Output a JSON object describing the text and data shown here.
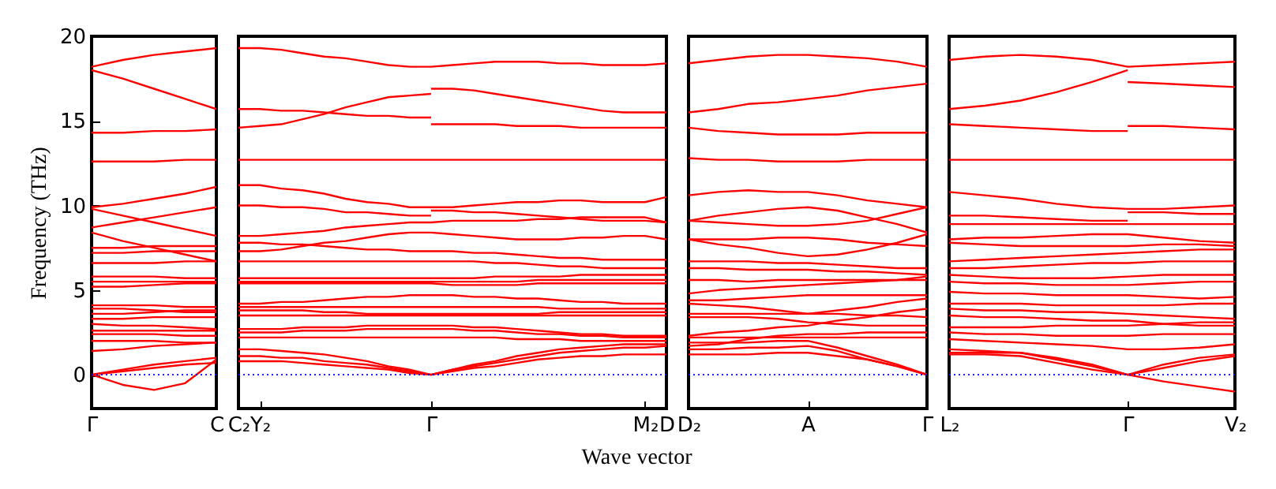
{
  "chart_data": [
    {
      "type": "line",
      "ylabel": "Frequency (THz)",
      "categories": [
        "Γ",
        null,
        null,
        null,
        "C"
      ],
      "ylim": [
        -2,
        20
      ],
      "yticks": [
        0,
        5,
        10,
        15,
        20
      ],
      "ref_lines": [
        {
          "axis": "y",
          "value": 0,
          "color": "#0000ff",
          "line_style": "dotted"
        }
      ],
      "series": [
        {
          "color": "#ff0000",
          "values": [
            18.2,
            18.6,
            18.9,
            19.1,
            19.3
          ]
        },
        {
          "color": "#ff0000",
          "values": [
            18.0,
            17.5,
            16.9,
            16.3,
            15.7
          ]
        },
        {
          "color": "#ff0000",
          "values": [
            14.3,
            14.3,
            14.4,
            14.4,
            14.5
          ]
        },
        {
          "color": "#ff0000",
          "values": [
            12.6,
            12.6,
            12.6,
            12.7,
            12.7
          ]
        },
        {
          "color": "#ff0000",
          "values": [
            9.9,
            10.1,
            10.4,
            10.7,
            11.1
          ]
        },
        {
          "color": "#ff0000",
          "values": [
            9.8,
            9.4,
            9.0,
            8.6,
            8.2
          ]
        },
        {
          "color": "#ff0000",
          "values": [
            8.7,
            9.0,
            9.3,
            9.6,
            9.9
          ]
        },
        {
          "color": "#ff0000",
          "values": [
            8.4,
            7.9,
            7.5,
            7.1,
            6.7
          ]
        },
        {
          "color": "#ff0000",
          "values": [
            7.5,
            7.5,
            7.6,
            7.6,
            7.6
          ]
        },
        {
          "color": "#ff0000",
          "values": [
            7.2,
            7.2,
            7.3,
            7.3,
            7.3
          ]
        },
        {
          "color": "#ff0000",
          "values": [
            6.6,
            6.6,
            6.6,
            6.7,
            6.7
          ]
        },
        {
          "color": "#ff0000",
          "values": [
            5.8,
            5.8,
            5.8,
            5.7,
            5.7
          ]
        },
        {
          "color": "#ff0000",
          "values": [
            5.5,
            5.5,
            5.5,
            5.5,
            5.5
          ]
        },
        {
          "color": "#ff0000",
          "values": [
            5.2,
            5.2,
            5.3,
            5.4,
            5.4
          ]
        },
        {
          "color": "#ff0000",
          "values": [
            4.1,
            4.1,
            4.1,
            4.0,
            4.0
          ]
        },
        {
          "color": "#ff0000",
          "values": [
            3.9,
            3.9,
            3.8,
            3.7,
            3.7
          ]
        },
        {
          "color": "#ff0000",
          "values": [
            3.6,
            3.6,
            3.7,
            3.8,
            3.8
          ]
        },
        {
          "color": "#ff0000",
          "values": [
            3.3,
            3.3,
            3.4,
            3.4,
            3.4
          ]
        },
        {
          "color": "#ff0000",
          "values": [
            3.0,
            2.9,
            2.9,
            2.8,
            2.7
          ]
        },
        {
          "color": "#ff0000",
          "values": [
            2.6,
            2.6,
            2.6,
            2.6,
            2.6
          ]
        },
        {
          "color": "#ff0000",
          "values": [
            2.4,
            2.4,
            2.4,
            2.3,
            2.3
          ]
        },
        {
          "color": "#ff0000",
          "values": [
            2.0,
            2.0,
            2.0,
            1.9,
            1.9
          ]
        },
        {
          "color": "#ff0000",
          "values": [
            1.4,
            1.5,
            1.7,
            1.8,
            1.9
          ]
        },
        {
          "color": "#ff0000",
          "values": [
            0,
            0.3,
            0.6,
            0.8,
            1.0
          ]
        },
        {
          "color": "#ff0000",
          "values": [
            0,
            0.2,
            0.4,
            0.6,
            0.7
          ]
        },
        {
          "color": "#ff0000",
          "values": [
            0,
            -0.6,
            -0.9,
            -0.5,
            0.9
          ]
        }
      ]
    },
    {
      "type": "line",
      "annotations": [
        "Wave vector"
      ],
      "categories": [
        "C₂",
        "Y₂",
        null,
        null,
        null,
        null,
        null,
        null,
        null,
        "Γ",
        null,
        null,
        null,
        null,
        null,
        null,
        null,
        null,
        null,
        "M₂",
        "D"
      ],
      "ylim": [
        -2,
        20
      ],
      "tick_labels": "x",
      "ref_lines": [
        {
          "axis": "y",
          "value": 0,
          "color": "#0000ff",
          "line_style": "dotted"
        }
      ],
      "series": [
        {
          "color": "#ff0000",
          "values": [
            19.3,
            19.3,
            19.2,
            19.0,
            18.8,
            18.7,
            18.5,
            18.3,
            18.2,
            18.2,
            18.3,
            18.4,
            18.5,
            18.5,
            18.5,
            18.4,
            18.4,
            18.3,
            18.3,
            18.3,
            18.4
          ]
        },
        {
          "color": "#ff0000",
          "values": [
            14.6,
            14.7,
            14.8,
            15.1,
            15.4,
            15.8,
            16.1,
            16.4,
            16.5,
            16.6,
            null,
            null,
            null,
            null,
            null,
            null,
            null,
            null,
            null,
            null,
            null
          ]
        },
        {
          "color": "#ff0000",
          "values": [
            null,
            null,
            null,
            null,
            null,
            null,
            null,
            null,
            null,
            16.9,
            16.9,
            16.8,
            16.6,
            16.4,
            16.2,
            16.0,
            15.8,
            15.6,
            15.5,
            15.5,
            15.5
          ]
        },
        {
          "color": "#ff0000",
          "values": [
            15.7,
            15.7,
            15.6,
            15.6,
            15.5,
            15.4,
            15.3,
            15.3,
            15.2,
            15.2,
            null,
            null,
            null,
            null,
            null,
            null,
            null,
            null,
            null,
            null,
            null
          ]
        },
        {
          "color": "#ff0000",
          "values": [
            null,
            null,
            null,
            null,
            null,
            null,
            null,
            null,
            null,
            14.8,
            14.8,
            14.8,
            14.8,
            14.7,
            14.7,
            14.7,
            14.6,
            14.6,
            14.6,
            14.6,
            14.6
          ]
        },
        {
          "color": "#ff0000",
          "values": [
            12.7,
            12.7,
            12.7,
            12.7,
            12.7,
            12.7,
            12.7,
            12.7,
            12.7,
            12.7,
            12.7,
            12.7,
            12.7,
            12.7,
            12.7,
            12.7,
            12.7,
            12.7,
            12.7,
            12.7,
            12.7
          ]
        },
        {
          "color": "#ff0000",
          "values": [
            11.2,
            11.2,
            11.0,
            10.9,
            10.7,
            10.4,
            10.2,
            10.1,
            9.9,
            9.9,
            9.9,
            10.0,
            10.1,
            10.2,
            10.2,
            10.3,
            10.3,
            10.2,
            10.2,
            10.2,
            10.5
          ]
        },
        {
          "color": "#ff0000",
          "values": [
            10.0,
            10.0,
            9.9,
            9.9,
            9.8,
            9.6,
            9.6,
            9.5,
            9.4,
            9.4,
            null,
            null,
            null,
            null,
            null,
            null,
            null,
            null,
            null,
            null,
            null
          ]
        },
        {
          "color": "#ff0000",
          "values": [
            null,
            null,
            null,
            null,
            null,
            null,
            null,
            null,
            null,
            9.7,
            9.7,
            9.6,
            9.6,
            9.5,
            9.4,
            9.3,
            9.2,
            9.1,
            9.1,
            9.1,
            9.0
          ]
        },
        {
          "color": "#ff0000",
          "values": [
            8.2,
            8.2,
            8.3,
            8.4,
            8.5,
            8.7,
            8.8,
            8.9,
            9.0,
            9.0,
            9.1,
            9.1,
            9.1,
            9.1,
            9.2,
            9.2,
            9.3,
            9.3,
            9.3,
            9.3,
            9.0
          ]
        },
        {
          "color": "#ff0000",
          "values": [
            7.8,
            7.8,
            7.7,
            7.7,
            7.6,
            7.5,
            7.4,
            7.4,
            7.3,
            7.3,
            7.3,
            7.2,
            7.2,
            7.1,
            7.0,
            6.9,
            6.9,
            6.8,
            6.8,
            6.8,
            6.8
          ]
        },
        {
          "color": "#ff0000",
          "values": [
            7.3,
            7.3,
            7.4,
            7.6,
            7.8,
            7.9,
            8.1,
            8.3,
            8.4,
            8.4,
            8.3,
            8.2,
            8.1,
            8.0,
            8.0,
            8.0,
            8.1,
            8.1,
            8.2,
            8.2,
            8.0
          ]
        },
        {
          "color": "#ff0000",
          "values": [
            6.7,
            6.7,
            6.7,
            6.7,
            6.7,
            6.7,
            6.7,
            6.7,
            6.7,
            6.7,
            6.7,
            6.7,
            6.6,
            6.6,
            6.5,
            6.4,
            6.4,
            6.3,
            6.3,
            6.3,
            6.3
          ]
        },
        {
          "color": "#ff0000",
          "values": [
            5.7,
            5.7,
            5.7,
            5.7,
            5.7,
            5.7,
            5.7,
            5.7,
            5.7,
            5.7,
            5.7,
            5.7,
            5.8,
            5.8,
            5.8,
            5.8,
            5.9,
            5.9,
            5.9,
            5.9,
            5.9
          ]
        },
        {
          "color": "#ff0000",
          "values": [
            5.5,
            5.5,
            5.5,
            5.5,
            5.5,
            5.5,
            5.5,
            5.5,
            5.5,
            5.5,
            5.5,
            5.5,
            5.5,
            5.5,
            5.6,
            5.6,
            5.6,
            5.6,
            5.6,
            5.6,
            5.6
          ]
        },
        {
          "color": "#ff0000",
          "values": [
            5.4,
            5.4,
            5.4,
            5.4,
            5.4,
            5.4,
            5.4,
            5.4,
            5.4,
            5.4,
            5.3,
            5.3,
            5.3,
            5.3,
            5.4,
            5.4,
            5.4,
            5.4,
            5.4,
            5.4,
            5.4
          ]
        },
        {
          "color": "#ff0000",
          "values": [
            4.2,
            4.2,
            4.3,
            4.3,
            4.4,
            4.5,
            4.6,
            4.6,
            4.7,
            4.7,
            4.7,
            4.6,
            4.6,
            4.5,
            4.5,
            4.4,
            4.3,
            4.3,
            4.2,
            4.2,
            4.2
          ]
        },
        {
          "color": "#ff0000",
          "values": [
            4.0,
            4.0,
            4.0,
            4.0,
            4.0,
            4.0,
            4.0,
            4.0,
            4.0,
            4.0,
            4.0,
            4.0,
            4.0,
            4.0,
            4.0,
            3.9,
            3.9,
            3.9,
            3.9,
            3.9,
            3.9
          ]
        },
        {
          "color": "#ff0000",
          "values": [
            3.8,
            3.8,
            3.8,
            3.8,
            3.7,
            3.7,
            3.6,
            3.6,
            3.6,
            3.6,
            3.6,
            3.6,
            3.6,
            3.6,
            3.6,
            3.7,
            3.7,
            3.7,
            3.7,
            3.7,
            3.7
          ]
        },
        {
          "color": "#ff0000",
          "values": [
            3.5,
            3.5,
            3.5,
            3.5,
            3.5,
            3.5,
            3.5,
            3.5,
            3.5,
            3.5,
            3.5,
            3.5,
            3.5,
            3.5,
            3.5,
            3.5,
            3.5,
            3.5,
            3.5,
            3.5,
            3.5
          ]
        },
        {
          "color": "#ff0000",
          "values": [
            2.7,
            2.7,
            2.7,
            2.8,
            2.8,
            2.8,
            2.9,
            2.9,
            2.9,
            2.9,
            2.9,
            2.8,
            2.8,
            2.7,
            2.6,
            2.5,
            2.4,
            2.4,
            2.3,
            2.3,
            2.3
          ]
        },
        {
          "color": "#ff0000",
          "values": [
            2.5,
            2.5,
            2.5,
            2.6,
            2.6,
            2.6,
            2.7,
            2.7,
            2.7,
            2.7,
            2.7,
            2.6,
            2.6,
            2.5,
            2.4,
            2.4,
            2.3,
            2.3,
            2.2,
            2.2,
            2.2
          ]
        },
        {
          "color": "#ff0000",
          "values": [
            2.2,
            2.2,
            2.2,
            2.2,
            2.2,
            2.2,
            2.2,
            2.2,
            2.2,
            2.2,
            2.2,
            2.2,
            2.2,
            2.1,
            2.1,
            2.1,
            2.0,
            2.0,
            2.0,
            2.0,
            2.0
          ]
        },
        {
          "color": "#ff0000",
          "values": [
            1.5,
            1.5,
            1.4,
            1.3,
            1.2,
            1.0,
            0.8,
            0.5,
            0.3,
            0,
            0.3,
            0.6,
            0.8,
            1.1,
            1.3,
            1.5,
            1.6,
            1.7,
            1.8,
            1.8,
            1.8
          ]
        },
        {
          "color": "#ff0000",
          "values": [
            1.1,
            1.1,
            1.0,
            1.0,
            0.8,
            0.7,
            0.6,
            0.4,
            0.2,
            0,
            0.3,
            0.5,
            0.7,
            0.9,
            1.1,
            1.3,
            1.4,
            1.5,
            1.6,
            1.6,
            1.7
          ]
        },
        {
          "color": "#ff0000",
          "values": [
            0.8,
            0.8,
            0.8,
            0.7,
            0.6,
            0.5,
            0.4,
            0.3,
            0.1,
            0,
            0.2,
            0.4,
            0.5,
            0.7,
            0.9,
            1.0,
            1.1,
            1.1,
            1.2,
            1.2,
            1.2
          ]
        }
      ]
    },
    {
      "type": "line",
      "categories": [
        "D₂",
        null,
        null,
        null,
        "A",
        null,
        null,
        null,
        "Γ"
      ],
      "ylim": [
        -2,
        20
      ],
      "tick_labels": "x",
      "ref_lines": [
        {
          "axis": "y",
          "value": 0,
          "color": "#0000ff",
          "line_style": "dotted"
        }
      ],
      "series": [
        {
          "color": "#ff0000",
          "values": [
            18.4,
            18.6,
            18.8,
            18.9,
            18.9,
            18.8,
            18.7,
            18.5,
            18.2
          ]
        },
        {
          "color": "#ff0000",
          "values": [
            15.5,
            15.7,
            16.0,
            16.1,
            16.3,
            16.5,
            16.8,
            17.0,
            17.2
          ]
        },
        {
          "color": "#ff0000",
          "values": [
            14.6,
            14.4,
            14.3,
            14.2,
            14.2,
            14.2,
            14.3,
            14.3,
            14.3
          ]
        },
        {
          "color": "#ff0000",
          "values": [
            12.8,
            12.7,
            12.7,
            12.6,
            12.6,
            12.6,
            12.7,
            12.7,
            12.7
          ]
        },
        {
          "color": "#ff0000",
          "values": [
            10.6,
            10.8,
            10.9,
            10.8,
            10.8,
            10.6,
            10.3,
            10.1,
            9.9
          ]
        },
        {
          "color": "#ff0000",
          "values": [
            9.1,
            9.4,
            9.6,
            9.8,
            9.9,
            9.7,
            9.3,
            8.9,
            8.4
          ]
        },
        {
          "color": "#ff0000",
          "values": [
            9.1,
            9.0,
            8.9,
            8.8,
            8.8,
            8.9,
            9.1,
            9.5,
            9.9
          ]
        },
        {
          "color": "#ff0000",
          "values": [
            8.0,
            7.7,
            7.5,
            7.2,
            7.0,
            7.1,
            7.4,
            7.8,
            8.3
          ]
        },
        {
          "color": "#ff0000",
          "values": [
            8.0,
            8.0,
            8.0,
            8.1,
            8.1,
            8.0,
            7.8,
            7.7,
            7.6
          ]
        },
        {
          "color": "#ff0000",
          "values": [
            6.7,
            6.7,
            6.7,
            6.6,
            6.6,
            6.5,
            6.4,
            6.3,
            6.3
          ]
        },
        {
          "color": "#ff0000",
          "values": [
            6.3,
            6.3,
            6.2,
            6.2,
            6.2,
            6.1,
            6.1,
            6.0,
            5.9
          ]
        },
        {
          "color": "#ff0000",
          "values": [
            5.6,
            5.6,
            5.5,
            5.6,
            5.6,
            5.6,
            5.6,
            5.6,
            5.6
          ]
        },
        {
          "color": "#ff0000",
          "values": [
            4.8,
            5.0,
            5.1,
            5.2,
            5.3,
            5.4,
            5.5,
            5.6,
            5.8
          ]
        },
        {
          "color": "#ff0000",
          "values": [
            4.4,
            4.4,
            4.5,
            4.6,
            4.7,
            4.7,
            4.7,
            4.7,
            4.7
          ]
        },
        {
          "color": "#ff0000",
          "values": [
            4.2,
            4.1,
            4.0,
            3.8,
            3.6,
            3.8,
            4.0,
            4.3,
            4.5
          ]
        },
        {
          "color": "#ff0000",
          "values": [
            3.6,
            3.6,
            3.6,
            3.6,
            3.6,
            3.6,
            3.5,
            3.5,
            3.4
          ]
        },
        {
          "color": "#ff0000",
          "values": [
            3.4,
            3.4,
            3.4,
            3.3,
            3.1,
            3.0,
            2.9,
            2.9,
            2.9
          ]
        },
        {
          "color": "#ff0000",
          "values": [
            2.3,
            2.5,
            2.6,
            2.8,
            2.9,
            3.2,
            3.4,
            3.7,
            3.9
          ]
        },
        {
          "color": "#ff0000",
          "values": [
            1.7,
            1.8,
            2.1,
            2.3,
            2.4,
            2.4,
            2.5,
            2.5,
            2.5
          ]
        },
        {
          "color": "#ff0000",
          "values": [
            2.2,
            2.2,
            2.2,
            2.2,
            2.2,
            2.2,
            2.2,
            2.2,
            2.2
          ]
        },
        {
          "color": "#ff0000",
          "values": [
            1.2,
            1.2,
            1.2,
            1.3,
            1.3,
            1.1,
            0.9,
            0.5,
            0
          ]
        },
        {
          "color": "#ff0000",
          "values": [
            1.9,
            1.9,
            1.9,
            2.0,
            2.0,
            1.6,
            1.1,
            0.6,
            0
          ]
        },
        {
          "color": "#ff0000",
          "values": [
            1.5,
            1.5,
            1.6,
            1.6,
            1.7,
            1.4,
            0.9,
            0.5,
            0
          ]
        }
      ]
    },
    {
      "type": "line",
      "categories": [
        "L₂",
        null,
        null,
        null,
        null,
        "Γ",
        null,
        null,
        "V₂"
      ],
      "ylim": [
        -2,
        20
      ],
      "tick_labels": "x",
      "ref_lines": [
        {
          "axis": "y",
          "value": 0,
          "color": "#0000ff",
          "line_style": "dotted"
        }
      ],
      "series": [
        {
          "color": "#ff0000",
          "values": [
            18.6,
            18.8,
            18.9,
            18.8,
            18.6,
            18.2,
            18.3,
            18.4,
            18.5
          ]
        },
        {
          "color": "#ff0000",
          "values": [
            15.7,
            15.9,
            16.2,
            16.7,
            17.3,
            18.0,
            null,
            null,
            null
          ]
        },
        {
          "color": "#ff0000",
          "values": [
            null,
            null,
            null,
            null,
            null,
            17.3,
            17.2,
            17.1,
            17.0
          ]
        },
        {
          "color": "#ff0000",
          "values": [
            14.8,
            14.7,
            14.6,
            14.5,
            14.4,
            14.4,
            null,
            null,
            null
          ]
        },
        {
          "color": "#ff0000",
          "values": [
            null,
            null,
            null,
            null,
            null,
            14.7,
            14.7,
            14.6,
            14.5
          ]
        },
        {
          "color": "#ff0000",
          "values": [
            12.7,
            12.7,
            12.7,
            12.7,
            12.7,
            12.7,
            12.7,
            12.7,
            12.7
          ]
        },
        {
          "color": "#ff0000",
          "values": [
            10.8,
            10.6,
            10.4,
            10.1,
            9.9,
            9.8,
            9.8,
            9.9,
            10.0
          ]
        },
        {
          "color": "#ff0000",
          "values": [
            9.4,
            9.4,
            9.3,
            9.2,
            9.1,
            9.1,
            null,
            null,
            null
          ]
        },
        {
          "color": "#ff0000",
          "values": [
            null,
            null,
            null,
            null,
            null,
            9.6,
            9.6,
            9.5,
            9.5
          ]
        },
        {
          "color": "#ff0000",
          "values": [
            8.9,
            8.9,
            8.9,
            8.9,
            8.9,
            8.9,
            8.9,
            8.9,
            8.9
          ]
        },
        {
          "color": "#ff0000",
          "values": [
            8.0,
            8.1,
            8.1,
            8.2,
            8.3,
            8.3,
            8.1,
            7.9,
            7.8
          ]
        },
        {
          "color": "#ff0000",
          "values": [
            7.8,
            7.7,
            7.6,
            7.6,
            7.6,
            7.6,
            7.7,
            7.7,
            7.6
          ]
        },
        {
          "color": "#ff0000",
          "values": [
            6.7,
            6.8,
            6.9,
            7.0,
            7.1,
            7.2,
            7.3,
            7.4,
            7.4
          ]
        },
        {
          "color": "#ff0000",
          "values": [
            6.3,
            6.3,
            6.4,
            6.5,
            6.6,
            6.6,
            6.7,
            6.7,
            6.7
          ]
        },
        {
          "color": "#ff0000",
          "values": [
            5.9,
            5.8,
            5.7,
            5.7,
            5.7,
            5.8,
            5.9,
            5.9,
            5.9
          ]
        },
        {
          "color": "#ff0000",
          "values": [
            5.5,
            5.4,
            5.4,
            5.3,
            5.3,
            5.3,
            5.4,
            5.5,
            5.5
          ]
        },
        {
          "color": "#ff0000",
          "values": [
            4.9,
            4.8,
            4.8,
            4.7,
            4.7,
            4.7,
            4.6,
            4.5,
            4.6
          ]
        },
        {
          "color": "#ff0000",
          "values": [
            4.2,
            4.2,
            4.2,
            4.1,
            4.1,
            4.1,
            4.1,
            4.2,
            4.2
          ]
        },
        {
          "color": "#ff0000",
          "values": [
            3.9,
            3.8,
            3.8,
            3.7,
            3.7,
            3.6,
            3.5,
            3.4,
            3.3
          ]
        },
        {
          "color": "#ff0000",
          "values": [
            3.5,
            3.4,
            3.4,
            3.3,
            3.2,
            3.2,
            3.0,
            2.9,
            2.9
          ]
        },
        {
          "color": "#ff0000",
          "values": [
            2.8,
            2.8,
            2.8,
            2.9,
            2.9,
            2.9,
            3.0,
            3.1,
            3.1
          ]
        },
        {
          "color": "#ff0000",
          "values": [
            2.5,
            2.4,
            2.4,
            2.3,
            2.3,
            2.3,
            2.4,
            2.4,
            2.4
          ]
        },
        {
          "color": "#ff0000",
          "values": [
            2.1,
            2.0,
            1.9,
            1.8,
            1.7,
            1.5,
            1.5,
            1.6,
            1.8
          ]
        },
        {
          "color": "#ff0000",
          "values": [
            1.5,
            1.4,
            1.3,
            1.0,
            0.6,
            0,
            0.6,
            1.0,
            1.2
          ]
        },
        {
          "color": "#ff0000",
          "values": [
            1.3,
            1.3,
            1.3,
            0.9,
            0.5,
            0,
            0.4,
            0.8,
            1.1
          ]
        },
        {
          "color": "#ff0000",
          "values": [
            1.2,
            1.2,
            1.1,
            0.7,
            0.3,
            0,
            -0.4,
            -0.7,
            -1.0
          ]
        }
      ]
    }
  ]
}
